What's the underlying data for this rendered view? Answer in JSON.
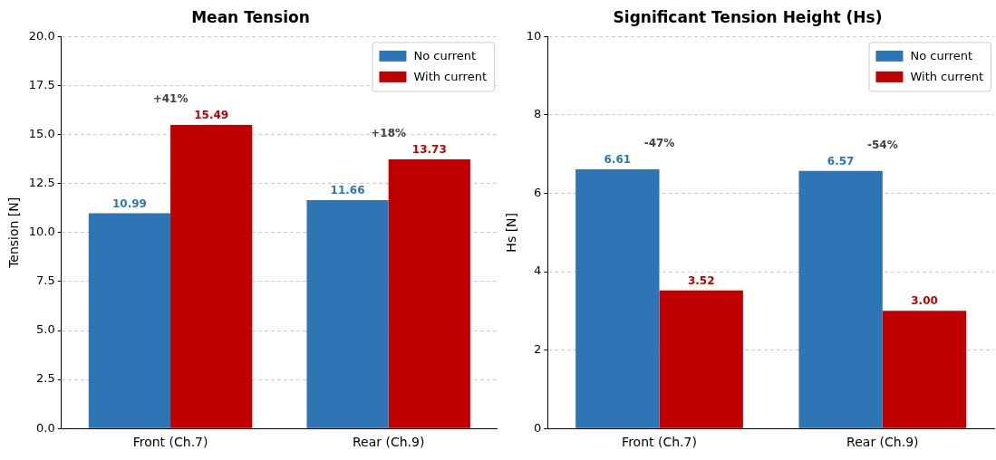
{
  "chart_data": [
    {
      "type": "bar",
      "title": "Mean Tension",
      "ylabel": "Tension [N]",
      "categories": [
        "Front (Ch.7)",
        "Rear (Ch.9)"
      ],
      "series": [
        {
          "name": "No current",
          "color": "#2e75b6",
          "values": [
            10.99,
            11.66
          ],
          "value_labels": [
            "10.99",
            "11.66"
          ]
        },
        {
          "name": "With current",
          "color": "#c00000",
          "values": [
            15.49,
            13.73
          ],
          "value_labels": [
            "15.49",
            "13.73"
          ]
        }
      ],
      "ylim": [
        0,
        20
      ],
      "yticks": [
        {
          "value": 0,
          "label": "0.0"
        },
        {
          "value": 2.5,
          "label": "2.5"
        },
        {
          "value": 5,
          "label": "5.0"
        },
        {
          "value": 7.5,
          "label": "7.5"
        },
        {
          "value": 10,
          "label": "10.0"
        },
        {
          "value": 12.5,
          "label": "12.5"
        },
        {
          "value": 15,
          "label": "15.0"
        },
        {
          "value": 17.5,
          "label": "17.5"
        },
        {
          "value": 20,
          "label": "20.0"
        }
      ],
      "annotations": [
        "+41%",
        "+18%"
      ],
      "grid": "y",
      "legend": "top right"
    },
    {
      "type": "bar",
      "title": "Significant Tension Height (Hs)",
      "ylabel": "Hs [N]",
      "categories": [
        "Front (Ch.7)",
        "Rear (Ch.9)"
      ],
      "series": [
        {
          "name": "No current",
          "color": "#2e75b6",
          "values": [
            6.61,
            6.57
          ],
          "value_labels": [
            "6.61",
            "6.57"
          ]
        },
        {
          "name": "With current",
          "color": "#c00000",
          "values": [
            3.52,
            3.0
          ],
          "value_labels": [
            "3.52",
            "3.00"
          ]
        }
      ],
      "ylim": [
        0,
        10
      ],
      "yticks": [
        0,
        2,
        4,
        6,
        8,
        10
      ],
      "annotations": [
        "-47%",
        "-54%"
      ],
      "grid": "y",
      "legend": "top right"
    }
  ]
}
